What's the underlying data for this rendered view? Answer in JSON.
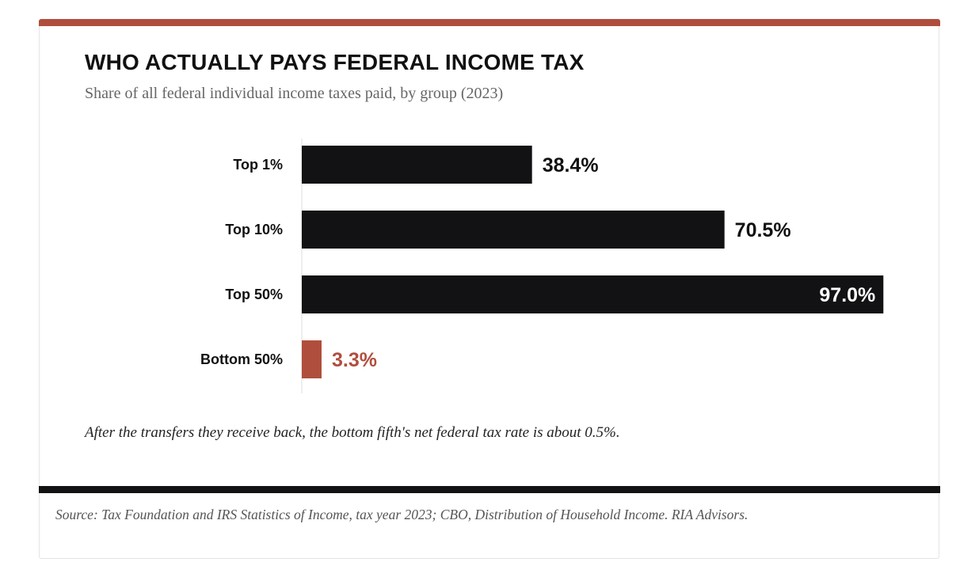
{
  "colors": {
    "accent": "#b04e3d",
    "bar": "#121214",
    "divider": "#121214",
    "label_inside": "#ffffff",
    "label_outside": "#111111"
  },
  "header": {
    "title": "WHO ACTUALLY PAYS FEDERAL INCOME TAX",
    "subtitle": "Share of all federal individual income taxes paid, by group (2023)"
  },
  "chart_data": {
    "type": "bar",
    "orientation": "horizontal",
    "title": "WHO ACTUALLY PAYS FEDERAL INCOME TAX",
    "subtitle": "Share of all federal individual income taxes paid, by group (2023)",
    "categories": [
      "Top 1%",
      "Top 10%",
      "Top 50%",
      "Bottom 50%"
    ],
    "values": [
      38.4,
      70.5,
      97.0,
      3.3
    ],
    "value_labels": [
      "38.4%",
      "70.5%",
      "97.0%",
      "3.3%"
    ],
    "highlight": [
      false,
      false,
      false,
      true
    ],
    "unit": "%",
    "xlim": [
      0,
      100
    ],
    "grid": false,
    "legend": "none"
  },
  "footnote": "After the transfers they receive back, the bottom fifth's net federal tax rate is about 0.5%.",
  "source": "Source: Tax Foundation and IRS Statistics of Income, tax year 2023; CBO, Distribution of Household Income. RIA Advisors."
}
